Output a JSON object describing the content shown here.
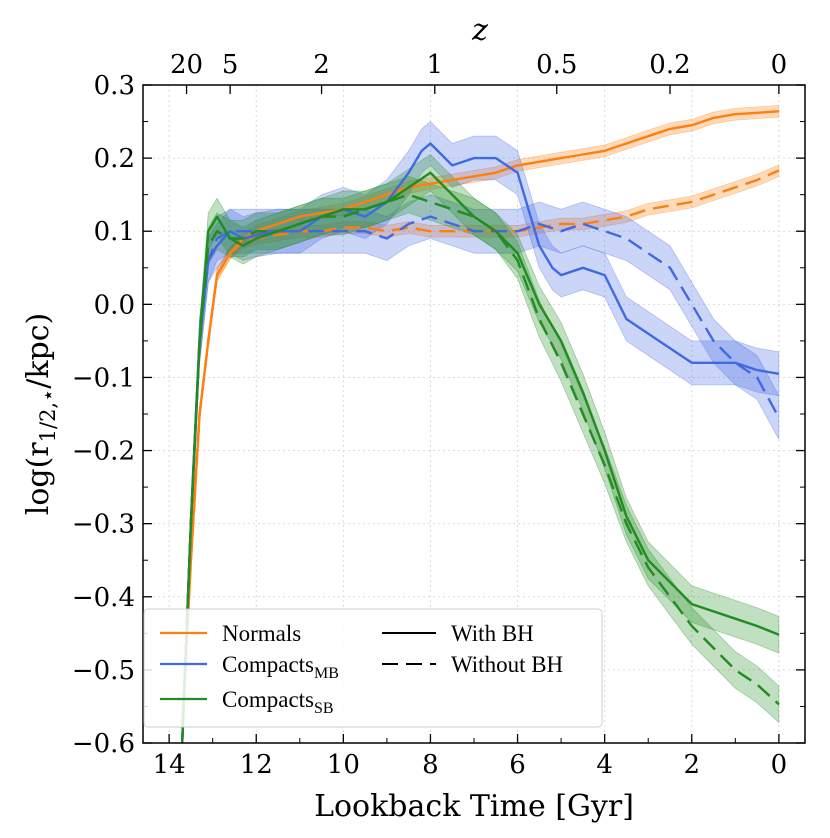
{
  "chart_data": {
    "type": "line",
    "xlabel": "Lookback Time [Gyr]",
    "ylabel_main": "log(r",
    "ylabel_sub": "1/2,⋆",
    "ylabel_tail": "/kpc)",
    "top_xlabel": "z",
    "xlim": [
      14.6,
      -0.6
    ],
    "ylim": [
      -0.6,
      0.3
    ],
    "grid": true,
    "x_ticks": [
      14,
      12,
      10,
      8,
      6,
      4,
      2,
      0
    ],
    "y_ticks": [
      0.3,
      0.2,
      0.1,
      0.0,
      -0.1,
      -0.2,
      -0.3,
      -0.4,
      -0.5,
      -0.6
    ],
    "y_tick_labels": [
      "0.3",
      "0.2",
      "0.1",
      "0.0",
      "−0.1",
      "−0.2",
      "−0.3",
      "−0.4",
      "−0.5",
      "−0.6"
    ],
    "top_ticks": [
      {
        "label": "20",
        "t": 13.6
      },
      {
        "label": "5",
        "t": 12.6
      },
      {
        "label": "2",
        "t": 10.5
      },
      {
        "label": "1",
        "t": 7.9
      },
      {
        "label": "0.5",
        "t": 5.1
      },
      {
        "label": "0.2",
        "t": 2.5
      },
      {
        "label": "0",
        "t": 0.0
      }
    ],
    "legend_position": "lower-left",
    "legend": [
      {
        "label": "Normals",
        "color": "#ff7f0e",
        "style": "solid"
      },
      {
        "label": "Compacts",
        "sub": "MB",
        "color": "#4169e1",
        "style": "solid"
      },
      {
        "label": "Compacts",
        "sub": "SB",
        "color": "#228b22",
        "style": "solid"
      },
      {
        "label": "With BH",
        "color": "#000000",
        "style": "solid"
      },
      {
        "label": "Without BH",
        "color": "#000000",
        "style": "dashed"
      }
    ],
    "series": [
      {
        "group": "Normals",
        "bh": "with",
        "color": "#ff7f0e",
        "dashed": false,
        "band": 0.008,
        "x": [
          13.7,
          13.5,
          13.3,
          13.1,
          12.9,
          12.6,
          12.3,
          12.0,
          11.5,
          11.0,
          10.5,
          10.0,
          9.5,
          9.0,
          8.5,
          8.0,
          7.5,
          7.0,
          6.5,
          6.0,
          5.5,
          5.0,
          4.5,
          4.0,
          3.5,
          3.0,
          2.5,
          2.0,
          1.5,
          1.0,
          0.5,
          0.0
        ],
        "y": [
          -0.58,
          -0.35,
          -0.15,
          -0.05,
          0.04,
          0.07,
          0.09,
          0.1,
          0.11,
          0.12,
          0.125,
          0.13,
          0.14,
          0.15,
          0.16,
          0.165,
          0.17,
          0.175,
          0.18,
          0.19,
          0.195,
          0.2,
          0.205,
          0.21,
          0.22,
          0.23,
          0.24,
          0.245,
          0.255,
          0.26,
          0.262,
          0.264
        ]
      },
      {
        "group": "Normals",
        "bh": "without",
        "color": "#ff7f0e",
        "dashed": true,
        "band": 0.008,
        "x": [
          13.7,
          13.5,
          13.3,
          13.1,
          12.9,
          12.6,
          12.3,
          12.0,
          11.5,
          11.0,
          10.5,
          10.0,
          9.5,
          9.0,
          8.5,
          8.0,
          7.5,
          7.0,
          6.5,
          6.0,
          5.5,
          5.0,
          4.5,
          4.0,
          3.5,
          3.0,
          2.5,
          2.0,
          1.5,
          1.0,
          0.5,
          0.0
        ],
        "y": [
          -0.58,
          -0.35,
          -0.15,
          -0.05,
          0.04,
          0.07,
          0.085,
          0.09,
          0.095,
          0.1,
          0.1,
          0.105,
          0.105,
          0.1,
          0.105,
          0.1,
          0.1,
          0.1,
          0.1,
          0.1,
          0.105,
          0.11,
          0.11,
          0.115,
          0.12,
          0.13,
          0.135,
          0.14,
          0.15,
          0.16,
          0.17,
          0.183
        ]
      },
      {
        "group": "Compacts_MB",
        "bh": "with",
        "color": "#4169e1",
        "dashed": false,
        "band": 0.03,
        "x": [
          13.7,
          13.5,
          13.3,
          13.1,
          12.9,
          12.6,
          12.3,
          12.0,
          11.5,
          11.0,
          10.5,
          10.0,
          9.5,
          9.0,
          8.5,
          8.2,
          8.0,
          7.5,
          7.0,
          6.5,
          6.0,
          5.5,
          5.2,
          5.0,
          4.5,
          4.0,
          3.5,
          3.0,
          2.5,
          2.0,
          1.5,
          1.0,
          0.5,
          0.0
        ],
        "y": [
          -0.6,
          -0.3,
          -0.05,
          0.06,
          0.08,
          0.1,
          0.09,
          0.095,
          0.1,
          0.1,
          0.12,
          0.13,
          0.12,
          0.14,
          0.18,
          0.21,
          0.22,
          0.19,
          0.2,
          0.2,
          0.18,
          0.08,
          0.05,
          0.04,
          0.05,
          0.04,
          -0.02,
          -0.04,
          -0.06,
          -0.08,
          -0.08,
          -0.08,
          -0.09,
          -0.095
        ]
      },
      {
        "group": "Compacts_MB",
        "bh": "without",
        "color": "#4169e1",
        "dashed": true,
        "band": 0.03,
        "x": [
          13.7,
          13.5,
          13.3,
          13.1,
          12.9,
          12.6,
          12.3,
          12.0,
          11.5,
          11.0,
          10.5,
          10.0,
          9.5,
          9.0,
          8.5,
          8.0,
          7.5,
          7.0,
          6.5,
          6.0,
          5.5,
          5.0,
          4.5,
          4.0,
          3.5,
          3.0,
          2.5,
          2.0,
          1.5,
          1.0,
          0.5,
          0.0
        ],
        "y": [
          -0.6,
          -0.3,
          -0.05,
          0.06,
          0.09,
          0.1,
          0.1,
          0.1,
          0.1,
          0.1,
          0.1,
          0.1,
          0.1,
          0.09,
          0.11,
          0.12,
          0.11,
          0.1,
          0.1,
          0.1,
          0.11,
          0.1,
          0.11,
          0.1,
          0.09,
          0.07,
          0.05,
          0.0,
          -0.05,
          -0.08,
          -0.1,
          -0.155
        ]
      },
      {
        "group": "Compacts_SB",
        "bh": "with",
        "color": "#228b22",
        "dashed": false,
        "band": 0.025,
        "x": [
          13.7,
          13.5,
          13.3,
          13.1,
          12.9,
          12.6,
          12.3,
          12.0,
          11.5,
          11.0,
          10.5,
          10.0,
          9.5,
          9.0,
          8.5,
          8.0,
          7.5,
          7.0,
          6.5,
          6.0,
          5.5,
          5.0,
          4.5,
          4.0,
          3.5,
          3.0,
          2.5,
          2.0,
          1.5,
          1.0,
          0.5,
          0.0
        ],
        "y": [
          -0.6,
          -0.3,
          -0.05,
          0.1,
          0.12,
          0.09,
          0.08,
          0.09,
          0.1,
          0.11,
          0.12,
          0.13,
          0.13,
          0.14,
          0.16,
          0.18,
          0.15,
          0.12,
          0.1,
          0.07,
          0.0,
          -0.05,
          -0.12,
          -0.2,
          -0.29,
          -0.35,
          -0.38,
          -0.41,
          -0.42,
          -0.43,
          -0.44,
          -0.452
        ]
      },
      {
        "group": "Compacts_SB",
        "bh": "without",
        "color": "#228b22",
        "dashed": true,
        "band": 0.025,
        "x": [
          13.7,
          13.5,
          13.3,
          13.1,
          12.9,
          12.6,
          12.3,
          12.0,
          11.5,
          11.0,
          10.5,
          10.0,
          9.5,
          9.0,
          8.5,
          8.0,
          7.5,
          7.0,
          6.5,
          6.0,
          5.5,
          5.0,
          4.5,
          4.0,
          3.5,
          3.0,
          2.5,
          2.0,
          1.5,
          1.0,
          0.5,
          0.0
        ],
        "y": [
          -0.6,
          -0.3,
          -0.05,
          0.08,
          0.1,
          0.09,
          0.09,
          0.1,
          0.1,
          0.11,
          0.12,
          0.12,
          0.13,
          0.14,
          0.15,
          0.14,
          0.13,
          0.12,
          0.1,
          0.06,
          -0.02,
          -0.08,
          -0.15,
          -0.22,
          -0.3,
          -0.36,
          -0.4,
          -0.44,
          -0.47,
          -0.5,
          -0.52,
          -0.547
        ]
      }
    ]
  }
}
